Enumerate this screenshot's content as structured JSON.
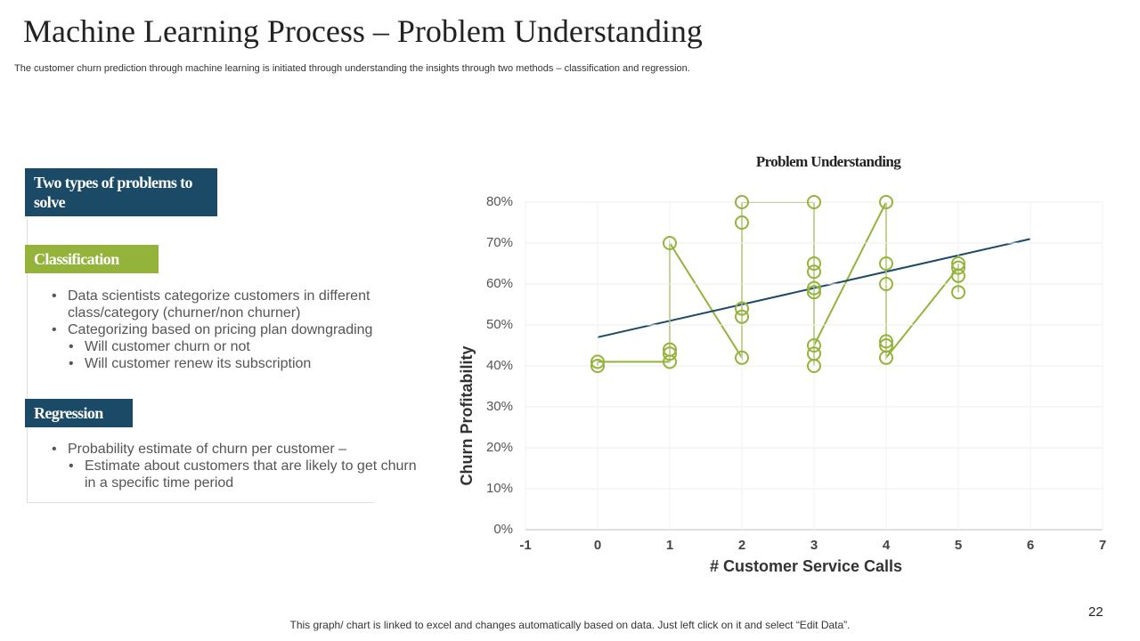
{
  "slide": {
    "title": "Machine Learning Process – Problem Understanding",
    "subtitle": "The customer churn prediction through machine learning is initiated through understanding the insights through two methods – classification and regression.",
    "footnote": "This graph/ chart is linked to excel and changes automatically based on data. Just left click on it and select “Edit Data”.",
    "page_number": "22"
  },
  "panel": {
    "heading": "Two types of problems to solve",
    "sections": [
      {
        "label": "Classification",
        "bullets": [
          {
            "text": "Data scientists categorize customers in different class/category (churner/non  churner)"
          },
          {
            "text": "Categorizing based on pricing plan downgrading",
            "sub": [
              "Will customer churn  or not",
              "Will customer renew its subscription"
            ]
          }
        ]
      },
      {
        "label": "Regression",
        "bullets": [
          {
            "text": "Probability estimate of churn  per customer –",
            "sub": [
              "Estimate about customers that are likely to get churn in a specific time period"
            ]
          }
        ]
      }
    ]
  },
  "chart_data": {
    "type": "scatter",
    "title": "Problem Understanding",
    "x_label": "# Customer Service Calls",
    "y_label": "Churn Profitability",
    "xlim": [
      -1,
      7
    ],
    "xticks": [
      -1,
      0,
      1,
      2,
      3,
      4,
      5,
      6,
      7
    ],
    "ylim": [
      0,
      80
    ],
    "yticks": [
      {
        "value": 0,
        "label": "0%"
      },
      {
        "value": 10,
        "label": "10%"
      },
      {
        "value": 20,
        "label": "20%"
      },
      {
        "value": 30,
        "label": "30%"
      },
      {
        "value": 40,
        "label": "40%"
      },
      {
        "value": 50,
        "label": "50%"
      },
      {
        "value": 60,
        "label": "60%"
      },
      {
        "value": 70,
        "label": "70%"
      },
      {
        "value": 80,
        "label": "80%"
      }
    ],
    "grid": true,
    "series": [
      {
        "color": "#94b33a",
        "markers": true,
        "x": [
          0,
          0,
          1,
          1,
          1,
          1,
          2,
          2,
          2,
          2,
          2,
          3,
          3,
          3,
          3,
          3,
          3,
          3,
          3,
          4,
          4,
          4,
          4,
          4,
          4,
          5,
          5,
          5,
          5
        ],
        "values": [
          40,
          41,
          41,
          43,
          44,
          70,
          42,
          52,
          54,
          75,
          80,
          80,
          65,
          63,
          59,
          58,
          40,
          43,
          45,
          80,
          65,
          60,
          46,
          45,
          42,
          64,
          65,
          62,
          58
        ]
      },
      {
        "color": "#1b4a66",
        "markers": false,
        "x": [
          0,
          6
        ],
        "values": [
          47,
          71
        ]
      }
    ]
  }
}
